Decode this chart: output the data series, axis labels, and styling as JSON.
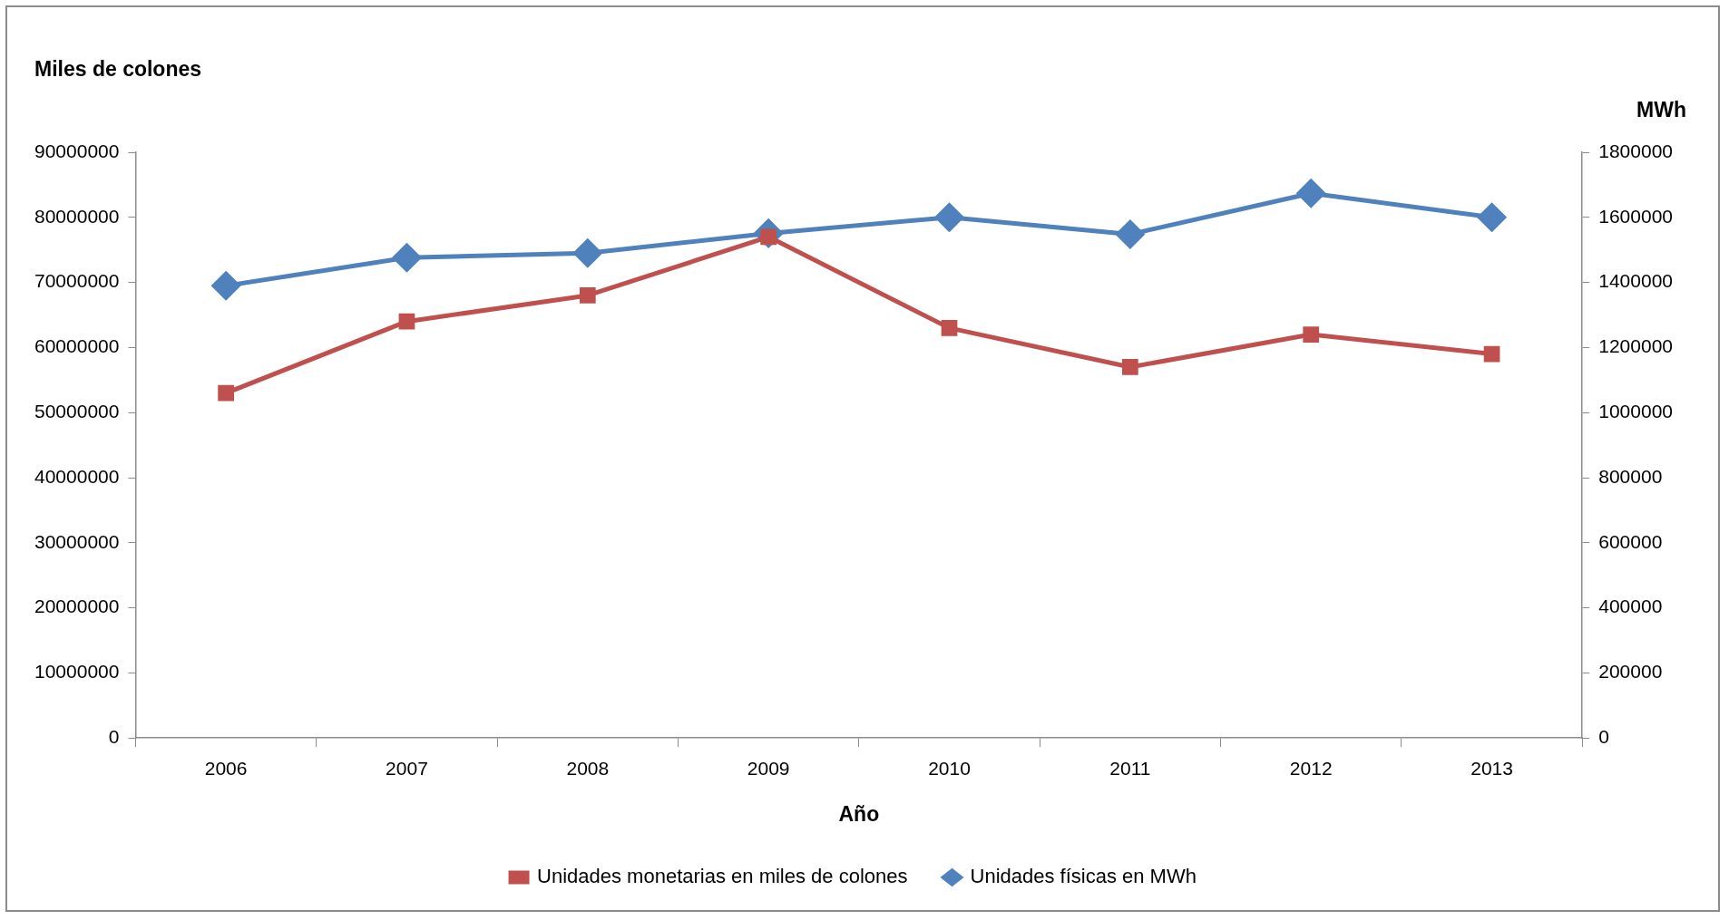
{
  "chart_data": {
    "type": "line",
    "xlabel": "Año",
    "ylabel": "Miles de colones",
    "y2label": "MWh",
    "categories": [
      "2006",
      "2007",
      "2008",
      "2009",
      "2010",
      "2011",
      "2012",
      "2013"
    ],
    "series": [
      {
        "name": "Unidades monetarias en miles de colones",
        "color": "#c0504d",
        "marker": "square",
        "values": [
          53000000,
          64000000,
          68000000,
          77000000,
          63000000,
          57000000,
          62000000,
          59000000
        ]
      },
      {
        "name": "Unidades físicas en MWh",
        "color": "#4f81bd",
        "marker": "diamond",
        "axis": "y2",
        "values": [
          1390000,
          1476000,
          1490000,
          1551000,
          1600000,
          1548000,
          1674000,
          1600000
        ]
      }
    ],
    "ylim": [
      0,
      90000000
    ],
    "yticks": [
      0,
      10000000,
      20000000,
      30000000,
      40000000,
      50000000,
      60000000,
      70000000,
      80000000,
      90000000
    ],
    "y2lim": [
      0,
      1800000
    ],
    "y2ticks": [
      0,
      200000,
      400000,
      600000,
      800000,
      1000000,
      1200000,
      1400000,
      1600000,
      1800000
    ],
    "grid": false,
    "legend": "bottom",
    "line_style": "solid"
  }
}
